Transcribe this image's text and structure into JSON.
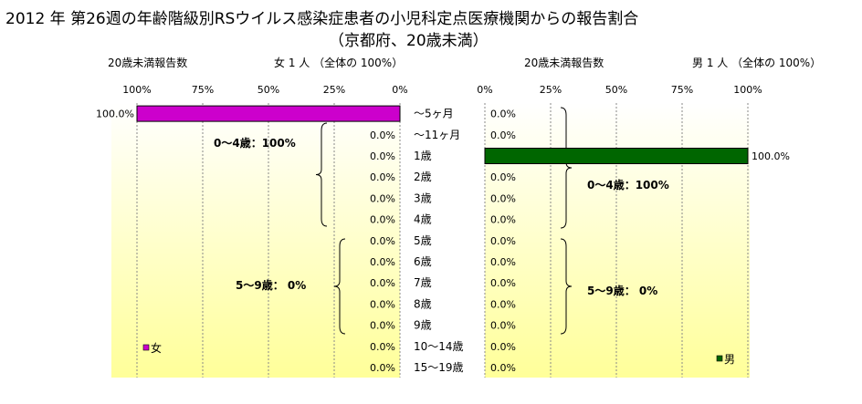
{
  "title": "2012 年 第26週の年齢階級別RSウイルス感染症患者の小児科定点医療機関からの報告割合",
  "subtitle": "（京都府、20歳未満）",
  "colors": {
    "female_bar": "#cc00cc",
    "male_bar": "#006600",
    "plot_top": "#ffffff",
    "plot_bottom": "#ffff99"
  },
  "chart_data": [
    {
      "type": "bar",
      "orientation": "horizontal",
      "direction": "right-to-left",
      "header_left": "20歳未満報告数",
      "header_right": "女  1 人  （全体の   100%）",
      "xlim": [
        0,
        100
      ],
      "xticks": [
        "100%",
        "75%",
        "50%",
        "25%",
        "0%"
      ],
      "categories": [
        "～5ヶ月",
        "～11ヶ月",
        "1歳",
        "2歳",
        "3歳",
        "4歳",
        "5歳",
        "6歳",
        "7歳",
        "8歳",
        "9歳",
        "10～14歳",
        "15～19歳"
      ],
      "series": [
        {
          "name": "女",
          "values": [
            100,
            0,
            0,
            0,
            0,
            0,
            0,
            0,
            0,
            0,
            0,
            0,
            0
          ],
          "labels": [
            "100.0%",
            "0.0%",
            "0.0%",
            "0.0%",
            "0.0%",
            "0.0%",
            "0.0%",
            "0.0%",
            "0.0%",
            "0.0%",
            "0.0%",
            "0.0%",
            "0.0%"
          ]
        }
      ],
      "annotations": [
        "0～4歳：100%",
        "5～9歳：  0%"
      ],
      "legend": "bottom-left",
      "grid": true
    },
    {
      "type": "bar",
      "orientation": "horizontal",
      "direction": "left-to-right",
      "header_left": "20歳未満報告数",
      "header_right": "男  1 人  （全体の   100%）",
      "xlim": [
        0,
        100
      ],
      "xticks": [
        "0%",
        "25%",
        "50%",
        "75%",
        "100%"
      ],
      "categories": [
        "～5ヶ月",
        "～11ヶ月",
        "1歳",
        "2歳",
        "3歳",
        "4歳",
        "5歳",
        "6歳",
        "7歳",
        "8歳",
        "9歳",
        "10～14歳",
        "15～19歳"
      ],
      "series": [
        {
          "name": "男",
          "values": [
            0,
            0,
            100,
            0,
            0,
            0,
            0,
            0,
            0,
            0,
            0,
            0,
            0
          ],
          "labels": [
            "0.0%",
            "0.0%",
            "100.0%",
            "0.0%",
            "0.0%",
            "0.0%",
            "0.0%",
            "0.0%",
            "0.0%",
            "0.0%",
            "0.0%",
            "0.0%",
            "0.0%"
          ]
        }
      ],
      "annotations": [
        "0～4歳：100%",
        "5～9歳：  0%"
      ],
      "legend": "bottom-right",
      "grid": true
    }
  ]
}
